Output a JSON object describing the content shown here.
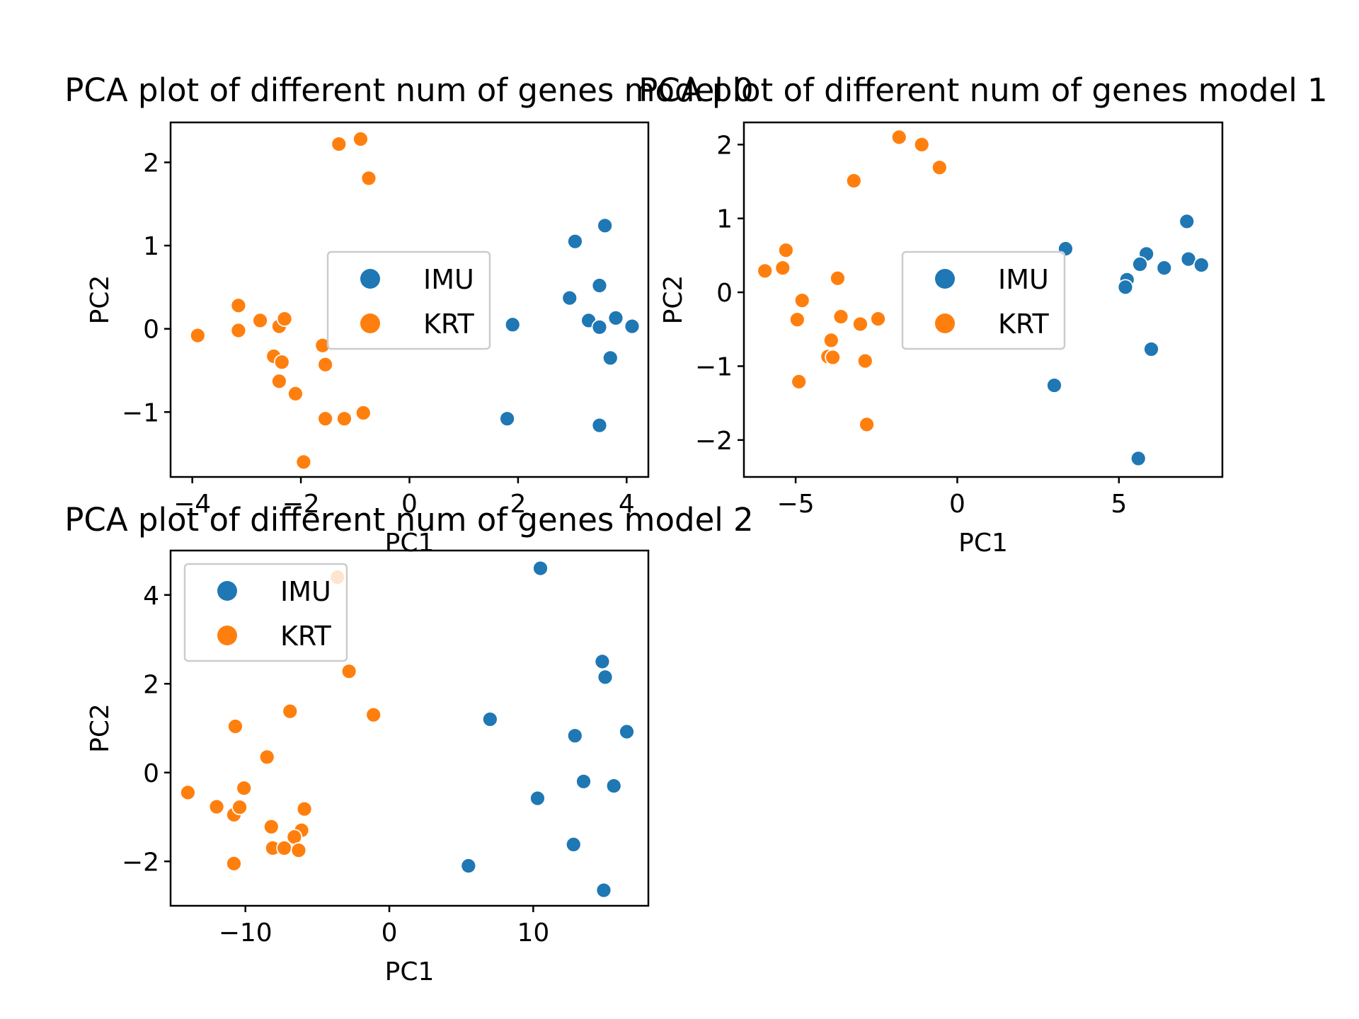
{
  "colors": {
    "IMU": "#1f77b4",
    "KRT": "#ff7f0e"
  },
  "chart_data": [
    {
      "type": "scatter",
      "title": "PCA plot of different num of genes model 0",
      "xlabel": "PC1",
      "ylabel": "PC2",
      "xlim": [
        -4.4,
        4.4
      ],
      "ylim": [
        -1.78,
        2.48
      ],
      "xticks": [
        -4,
        -2,
        0,
        2,
        4
      ],
      "yticks": [
        -1,
        0,
        1,
        2
      ],
      "legend": "center",
      "series": [
        {
          "name": "IMU",
          "points": [
            [
              3.6,
              1.24
            ],
            [
              3.05,
              1.05
            ],
            [
              3.5,
              0.52
            ],
            [
              2.95,
              0.37
            ],
            [
              3.3,
              0.1
            ],
            [
              3.5,
              0.02
            ],
            [
              3.8,
              0.13
            ],
            [
              4.1,
              0.03
            ],
            [
              1.9,
              0.05
            ],
            [
              3.7,
              -0.35
            ],
            [
              1.8,
              -1.08
            ],
            [
              3.5,
              -1.16
            ]
          ]
        },
        {
          "name": "KRT",
          "points": [
            [
              -1.3,
              2.22
            ],
            [
              -0.9,
              2.28
            ],
            [
              -0.75,
              1.81
            ],
            [
              -3.9,
              -0.08
            ],
            [
              -3.15,
              0.28
            ],
            [
              -3.15,
              -0.02
            ],
            [
              -2.75,
              0.1
            ],
            [
              -2.4,
              0.03
            ],
            [
              -2.3,
              0.12
            ],
            [
              -2.5,
              -0.33
            ],
            [
              -2.35,
              -0.4
            ],
            [
              -2.4,
              -0.63
            ],
            [
              -2.1,
              -0.78
            ],
            [
              -1.6,
              -0.2
            ],
            [
              -1.55,
              -0.43
            ],
            [
              -1.55,
              -1.08
            ],
            [
              -1.2,
              -1.08
            ],
            [
              -0.85,
              -1.01
            ],
            [
              -1.95,
              -1.6
            ]
          ]
        }
      ]
    },
    {
      "type": "scatter",
      "title": "PCA plot of different num of genes model 1",
      "xlabel": "PC1",
      "ylabel": "PC2",
      "xlim": [
        -6.6,
        8.2
      ],
      "ylim": [
        -2.5,
        2.3
      ],
      "xticks": [
        -5,
        0,
        5
      ],
      "yticks": [
        -2,
        -1,
        0,
        1,
        2
      ],
      "legend": "center",
      "series": [
        {
          "name": "IMU",
          "points": [
            [
              7.1,
              0.96
            ],
            [
              3.35,
              0.59
            ],
            [
              5.85,
              0.52
            ],
            [
              7.15,
              0.45
            ],
            [
              7.55,
              0.37
            ],
            [
              5.65,
              0.38
            ],
            [
              6.4,
              0.33
            ],
            [
              5.25,
              0.17
            ],
            [
              5.2,
              0.07
            ],
            [
              6.0,
              -0.77
            ],
            [
              3.0,
              -1.26
            ],
            [
              5.6,
              -2.25
            ]
          ]
        },
        {
          "name": "KRT",
          "points": [
            [
              -1.8,
              2.1
            ],
            [
              -1.1,
              2.0
            ],
            [
              -0.55,
              1.69
            ],
            [
              -3.2,
              1.51
            ],
            [
              -5.3,
              0.57
            ],
            [
              -5.4,
              0.33
            ],
            [
              -5.95,
              0.29
            ],
            [
              -3.7,
              0.19
            ],
            [
              -4.8,
              -0.11
            ],
            [
              -4.95,
              -0.37
            ],
            [
              -3.6,
              -0.33
            ],
            [
              -3.0,
              -0.43
            ],
            [
              -2.45,
              -0.36
            ],
            [
              -3.9,
              -0.65
            ],
            [
              -4.0,
              -0.87
            ],
            [
              -3.85,
              -0.88
            ],
            [
              -2.85,
              -0.93
            ],
            [
              -4.9,
              -1.21
            ],
            [
              -2.8,
              -1.79
            ]
          ]
        }
      ]
    },
    {
      "type": "scatter",
      "title": "PCA plot of different num of genes model 2",
      "xlabel": "PC1",
      "ylabel": "PC2",
      "xlim": [
        -15.2,
        18.0
      ],
      "ylim": [
        -3.0,
        5.0
      ],
      "xticks": [
        -10,
        0,
        10
      ],
      "yticks": [
        -2,
        0,
        2,
        4
      ],
      "legend": "upper left",
      "series": [
        {
          "name": "IMU",
          "points": [
            [
              10.5,
              4.6
            ],
            [
              14.8,
              2.5
            ],
            [
              15.0,
              2.15
            ],
            [
              7.0,
              1.2
            ],
            [
              16.5,
              0.92
            ],
            [
              12.9,
              0.83
            ],
            [
              13.5,
              -0.2
            ],
            [
              15.6,
              -0.3
            ],
            [
              10.3,
              -0.58
            ],
            [
              12.8,
              -1.62
            ],
            [
              5.5,
              -2.1
            ],
            [
              14.9,
              -2.65
            ]
          ]
        },
        {
          "name": "KRT",
          "points": [
            [
              -3.6,
              4.4
            ],
            [
              -2.8,
              2.28
            ],
            [
              -1.1,
              1.3
            ],
            [
              -6.9,
              1.38
            ],
            [
              -10.7,
              1.04
            ],
            [
              -8.5,
              0.35
            ],
            [
              -14.0,
              -0.45
            ],
            [
              -10.1,
              -0.35
            ],
            [
              -12.0,
              -0.77
            ],
            [
              -10.8,
              -0.95
            ],
            [
              -10.4,
              -0.78
            ],
            [
              -8.2,
              -1.22
            ],
            [
              -5.9,
              -0.82
            ],
            [
              -6.1,
              -1.3
            ],
            [
              -6.6,
              -1.45
            ],
            [
              -8.1,
              -1.7
            ],
            [
              -7.3,
              -1.7
            ],
            [
              -6.3,
              -1.75
            ],
            [
              -10.8,
              -2.05
            ]
          ]
        }
      ]
    }
  ]
}
